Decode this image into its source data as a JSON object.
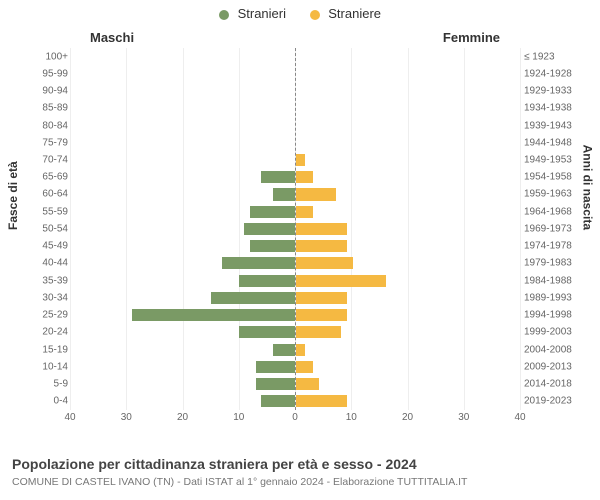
{
  "legend": {
    "male": {
      "label": "Stranieri",
      "color": "#7a9a65"
    },
    "female": {
      "label": "Straniere",
      "color": "#f5b942"
    }
  },
  "columns": {
    "male": "Maschi",
    "female": "Femmine"
  },
  "axis_titles": {
    "left": "Fasce di età",
    "right": "Anni di nascita"
  },
  "chart": {
    "type": "population-pyramid",
    "xlim": 40,
    "xtick_step": 10,
    "xticks": [
      40,
      30,
      20,
      10,
      0,
      10,
      20,
      30,
      40
    ],
    "male_bar_color": "#7a9a65",
    "female_bar_color": "#f5b942",
    "grid_color": "#eeeeee",
    "centerline_color": "#888888",
    "background_color": "#ffffff",
    "tick_fontsize": 10,
    "axis_title_fontsize": 12,
    "legend_fontsize": 13,
    "bins": [
      {
        "age": "100+",
        "birth": "≤ 1923",
        "m": 0,
        "f": 0
      },
      {
        "age": "95-99",
        "birth": "1924-1928",
        "m": 0,
        "f": 0
      },
      {
        "age": "90-94",
        "birth": "1929-1933",
        "m": 0,
        "f": 0
      },
      {
        "age": "85-89",
        "birth": "1934-1938",
        "m": 0,
        "f": 0
      },
      {
        "age": "80-84",
        "birth": "1939-1943",
        "m": 0,
        "f": 0
      },
      {
        "age": "75-79",
        "birth": "1944-1948",
        "m": 0,
        "f": 0
      },
      {
        "age": "70-74",
        "birth": "1949-1953",
        "m": 0,
        "f": 1.5
      },
      {
        "age": "65-69",
        "birth": "1954-1958",
        "m": 6,
        "f": 3
      },
      {
        "age": "60-64",
        "birth": "1959-1963",
        "m": 4,
        "f": 7
      },
      {
        "age": "55-59",
        "birth": "1964-1968",
        "m": 8,
        "f": 3
      },
      {
        "age": "50-54",
        "birth": "1969-1973",
        "m": 9,
        "f": 9
      },
      {
        "age": "45-49",
        "birth": "1974-1978",
        "m": 8,
        "f": 9
      },
      {
        "age": "40-44",
        "birth": "1979-1983",
        "m": 13,
        "f": 10
      },
      {
        "age": "35-39",
        "birth": "1984-1988",
        "m": 10,
        "f": 16
      },
      {
        "age": "30-34",
        "birth": "1989-1993",
        "m": 15,
        "f": 9
      },
      {
        "age": "25-29",
        "birth": "1994-1998",
        "m": 29,
        "f": 9
      },
      {
        "age": "20-24",
        "birth": "1999-2003",
        "m": 10,
        "f": 8
      },
      {
        "age": "15-19",
        "birth": "2004-2008",
        "m": 4,
        "f": 1.5
      },
      {
        "age": "10-14",
        "birth": "2009-2013",
        "m": 7,
        "f": 3
      },
      {
        "age": "5-9",
        "birth": "2014-2018",
        "m": 7,
        "f": 4
      },
      {
        "age": "0-4",
        "birth": "2019-2023",
        "m": 6,
        "f": 9
      }
    ]
  },
  "title": "Popolazione per cittadinanza straniera per età e sesso - 2024",
  "subtitle": "COMUNE DI CASTEL IVANO (TN) - Dati ISTAT al 1° gennaio 2024 - Elaborazione TUTTITALIA.IT"
}
